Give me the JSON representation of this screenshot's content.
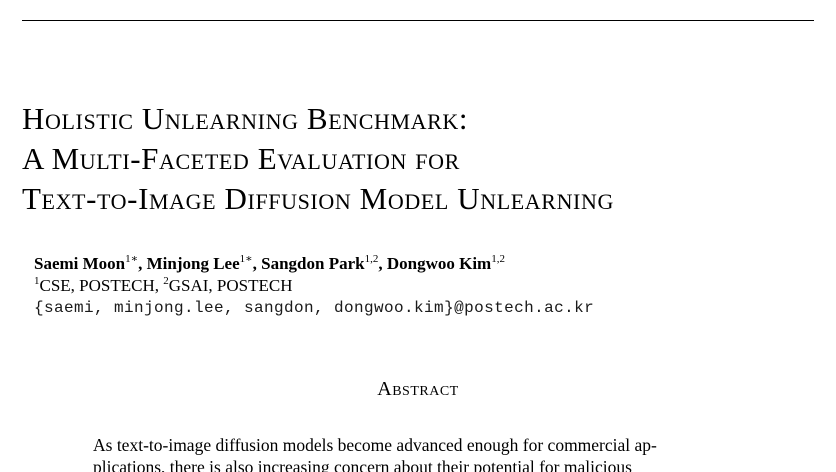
{
  "paper": {
    "title_lines": [
      "Holistic Unlearning Benchmark:",
      "A Multi-Faceted Evaluation for",
      "Text-to-Image Diffusion Model Unlearning"
    ],
    "authors": [
      {
        "name": "Saemi Moon",
        "sup": "1∗"
      },
      {
        "name": "Minjong Lee",
        "sup": "1∗"
      },
      {
        "name": "Sangdon Park",
        "sup": "1,2"
      },
      {
        "name": "Dongwoo Kim",
        "sup": "1,2"
      }
    ],
    "affiliations": [
      {
        "sup": "1",
        "text": "CSE, POSTECH"
      },
      {
        "sup": "2",
        "text": "GSAI, POSTECH"
      }
    ],
    "email": "{saemi, minjong.lee, sangdon, dongwoo.kim}@postech.ac.kr",
    "abstract_heading": "Abstract",
    "abstract_lines": [
      "As text-to-image diffusion models become advanced enough for commercial ap-",
      "plications, there is also increasing concern about their potential for malicious"
    ]
  }
}
